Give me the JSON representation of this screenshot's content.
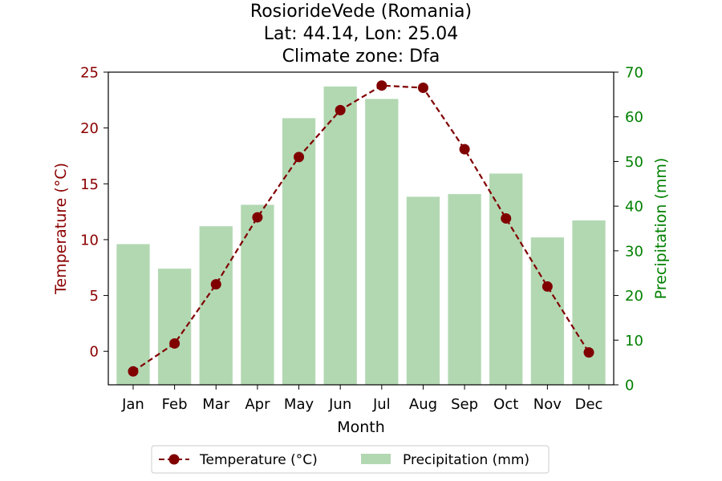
{
  "chart_data": {
    "type": "bar+line",
    "title_lines": [
      "RosiorideVede (Romania)",
      "Lat: 44.14, Lon: 25.04",
      "Climate zone: Dfa"
    ],
    "xlabel": "Month",
    "ylabel_left": "Temperature (°C)",
    "ylabel_right": "Precipitation (mm)",
    "categories": [
      "Jan",
      "Feb",
      "Mar",
      "Apr",
      "May",
      "Jun",
      "Jul",
      "Aug",
      "Sep",
      "Oct",
      "Nov",
      "Dec"
    ],
    "temperature": {
      "name": "Temperature (°C)",
      "values": [
        -1.8,
        0.7,
        6.0,
        12.0,
        17.4,
        21.6,
        23.8,
        23.6,
        18.1,
        11.9,
        5.8,
        -0.1
      ],
      "color": "#800000"
    },
    "precipitation": {
      "name": "Precipitation (mm)",
      "values": [
        31.5,
        26.0,
        35.5,
        40.3,
        59.7,
        66.8,
        64.0,
        42.1,
        42.7,
        47.3,
        33.0,
        36.8
      ],
      "color": "#b2d8b2"
    },
    "ylim_left": [
      -3,
      25
    ],
    "yticks_left": [
      0,
      5,
      10,
      15,
      20,
      25
    ],
    "ylim_right": [
      0,
      70
    ],
    "yticks_right": [
      0,
      10,
      20,
      30,
      40,
      50,
      60,
      70
    ],
    "left_axis_color": "#8b0000",
    "right_axis_color": "#008000",
    "grid": false,
    "legend_position": "bottom-center"
  }
}
